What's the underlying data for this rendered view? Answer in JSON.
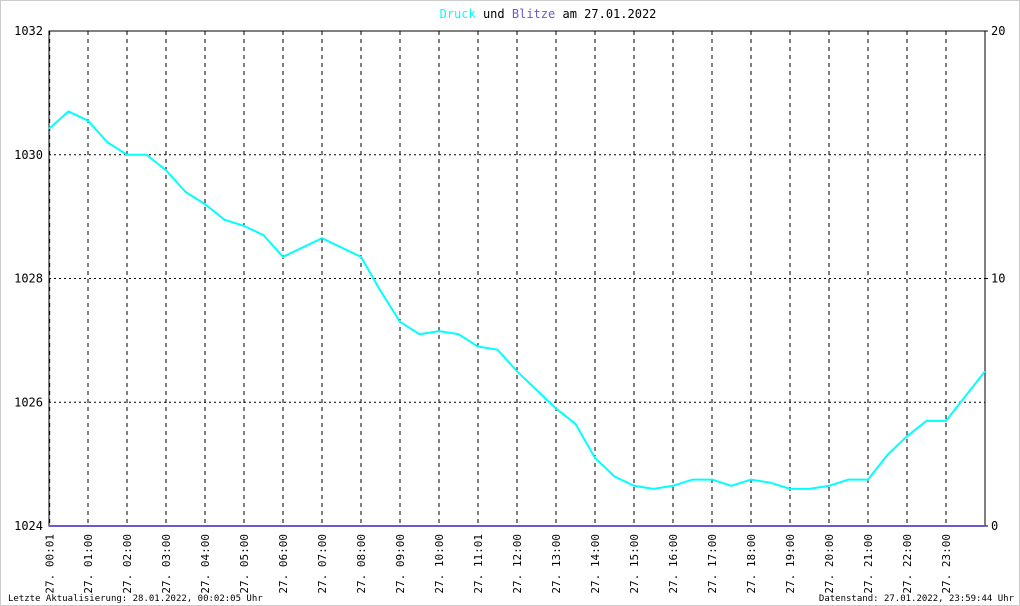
{
  "chart_data": {
    "type": "line",
    "title": [
      "Druck",
      "und",
      "Blitze",
      "am 27.01.2022"
    ],
    "footer_left": "Letzte Aktualisierung: 28.01.2022, 00:02:05 Uhr",
    "footer_right": "Datenstand: 27.01.2022, 23:59:44 Uhr",
    "x": [
      0,
      0.5,
      1,
      1.5,
      2,
      2.5,
      3,
      3.5,
      4,
      4.5,
      5,
      5.5,
      6,
      6.5,
      7,
      7.5,
      8,
      8.5,
      9,
      9.5,
      10,
      10.5,
      11,
      11.5,
      12,
      12.5,
      13,
      13.5,
      14,
      14.5,
      15,
      15.5,
      16,
      16.5,
      17,
      17.5,
      18,
      18.5,
      19,
      19.5,
      20,
      20.5,
      21,
      21.5,
      22,
      22.5,
      23,
      23.5,
      24
    ],
    "series": [
      {
        "name": "Druck",
        "color": "#00ffff",
        "values": [
          1030.42,
          1030.7,
          1030.55,
          1030.2,
          1030.0,
          1030.0,
          1029.75,
          1029.4,
          1029.2,
          1028.95,
          1028.85,
          1028.7,
          1028.35,
          1028.5,
          1028.65,
          1028.5,
          1028.35,
          1027.8,
          1027.3,
          1027.1,
          1027.15,
          1027.1,
          1026.9,
          1026.85,
          1026.5,
          1026.2,
          1025.9,
          1025.65,
          1025.1,
          1024.8,
          1024.65,
          1024.6,
          1024.65,
          1024.75,
          1024.75,
          1024.65,
          1024.75,
          1024.7,
          1024.6,
          1024.6,
          1024.65,
          1024.75,
          1024.75,
          1025.15,
          1025.45,
          1025.7,
          1025.7,
          1026.1,
          1026.5
        ]
      },
      {
        "name": "Blitze",
        "color": "#6a5acd",
        "axis": "y2",
        "values": [
          0,
          0,
          0,
          0,
          0,
          0,
          0,
          0,
          0,
          0,
          0,
          0,
          0,
          0,
          0,
          0,
          0,
          0,
          0,
          0,
          0,
          0,
          0,
          0,
          0,
          0,
          0,
          0,
          0,
          0,
          0,
          0,
          0,
          0,
          0,
          0,
          0,
          0,
          0,
          0,
          0,
          0,
          0,
          0,
          0,
          0,
          0,
          0,
          0
        ]
      }
    ],
    "xlim": [
      0,
      24
    ],
    "xticks": [
      {
        "value": 0.017,
        "label": "27. 00:01"
      },
      {
        "value": 1,
        "label": "27. 01:00"
      },
      {
        "value": 2,
        "label": "27. 02:00"
      },
      {
        "value": 3,
        "label": "27. 03:00"
      },
      {
        "value": 4,
        "label": "27. 04:00"
      },
      {
        "value": 5,
        "label": "27. 05:00"
      },
      {
        "value": 6,
        "label": "27. 06:00"
      },
      {
        "value": 7,
        "label": "27. 07:00"
      },
      {
        "value": 8,
        "label": "27. 08:00"
      },
      {
        "value": 9,
        "label": "27. 09:00"
      },
      {
        "value": 10,
        "label": "27. 10:00"
      },
      {
        "value": 11,
        "label": "27. 11:01"
      },
      {
        "value": 12,
        "label": "27. 12:00"
      },
      {
        "value": 13,
        "label": "27. 13:00"
      },
      {
        "value": 14,
        "label": "27. 14:00"
      },
      {
        "value": 15,
        "label": "27. 15:00"
      },
      {
        "value": 16,
        "label": "27. 16:00"
      },
      {
        "value": 17,
        "label": "27. 17:00"
      },
      {
        "value": 18,
        "label": "27. 18:00"
      },
      {
        "value": 19,
        "label": "27. 19:00"
      },
      {
        "value": 20,
        "label": "27. 20:00"
      },
      {
        "value": 21,
        "label": "27. 21:00"
      },
      {
        "value": 22,
        "label": "27. 22:00"
      },
      {
        "value": 23,
        "label": "27. 23:00"
      }
    ],
    "ylim": [
      1024,
      1032
    ],
    "yticks": [
      1024,
      1026,
      1028,
      1030,
      1032
    ],
    "y2lim": [
      0,
      20
    ],
    "y2ticks": [
      0,
      10,
      20
    ],
    "grid": true
  }
}
